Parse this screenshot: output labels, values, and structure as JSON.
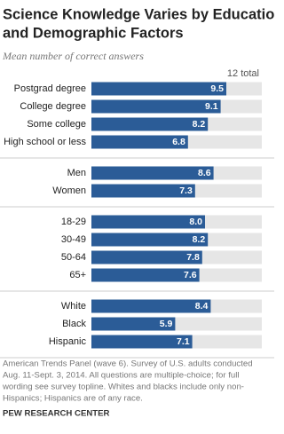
{
  "chart_data": {
    "type": "bar",
    "title": [
      "Science Knowledge Varies by Education",
      "and Demographic Factors"
    ],
    "subtitle": "Mean number of correct answers",
    "scale_label": "12 total",
    "xlim": [
      0,
      12
    ],
    "color": "#2b5c97",
    "groups": [
      {
        "categories": [
          "Postgrad degree",
          "College degree",
          "Some college",
          "High school or less"
        ],
        "values": [
          9.5,
          9.1,
          8.2,
          6.8
        ],
        "value_labels": [
          "9.5",
          "9.1",
          "8.2",
          "6.8"
        ]
      },
      {
        "categories": [
          "Men",
          "Women"
        ],
        "values": [
          8.6,
          7.3
        ],
        "value_labels": [
          "8.6",
          "7.3"
        ]
      },
      {
        "categories": [
          "18-29",
          "30-49",
          "50-64",
          "65+"
        ],
        "values": [
          8.0,
          8.2,
          7.8,
          7.6
        ],
        "value_labels": [
          "8.0",
          "8.2",
          "7.8",
          "7.6"
        ]
      },
      {
        "categories": [
          "White",
          "Black",
          "Hispanic"
        ],
        "values": [
          8.4,
          5.9,
          7.1
        ],
        "value_labels": [
          "8.4",
          "5.9",
          "7.1"
        ]
      }
    ],
    "note": [
      "American Trends Panel (wave 6). Survey of U.S. adults conducted",
      "Aug. 11-Sept. 3, 2014. All questions are multiple-choice; for full",
      "wording see survey topline. Whites and blacks include only non-",
      "Hispanics; Hispanics are of any race."
    ],
    "source": "PEW RESEARCH CENTER"
  }
}
